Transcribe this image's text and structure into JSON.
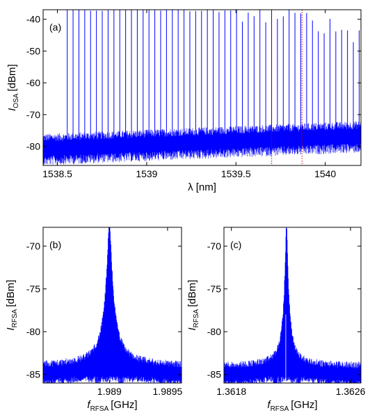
{
  "chart_data": [
    {
      "type": "line",
      "panel_label": "(a)",
      "xlabel": "λ [nm]",
      "ylabel_main": "I",
      "ylabel_sub": "OSA",
      "ylabel_unit": "[dBm]",
      "xlim": [
        1538.42,
        1540.2
      ],
      "ylim": [
        -86,
        -37
      ],
      "xticks": [
        1538.5,
        1539,
        1539.5,
        1540
      ],
      "xtick_labels": [
        "1538.5",
        "1539",
        "1539.5",
        "1540"
      ],
      "yticks": [
        -80,
        -70,
        -60,
        -50,
        -40
      ],
      "ytick_labels": [
        "-80",
        "-70",
        "-60",
        "-50",
        "-40"
      ],
      "noise_floor_dbm": -81,
      "line_spacing_nm": 0.0327,
      "first_line_nm": 1538.555,
      "peak_envelope": [
        {
          "x": 1538.555,
          "y": -36
        },
        {
          "x": 1538.65,
          "y": -37
        },
        {
          "x": 1538.85,
          "y": -37
        },
        {
          "x": 1539.2,
          "y": -37
        },
        {
          "x": 1539.6,
          "y": -38
        },
        {
          "x": 1539.9,
          "y": -40
        },
        {
          "x": 1540.2,
          "y": -45
        }
      ],
      "vlines": [
        1539.7,
        1539.87
      ],
      "series_color": "#0000ff"
    },
    {
      "type": "line",
      "panel_label": "(b)",
      "xlabel_main": "f",
      "xlabel_sub": "RFSA",
      "xlabel_unit": "[GHz]",
      "ylabel_main": "I",
      "ylabel_sub": "RFSA",
      "ylabel_unit": "[dBm]",
      "xlim": [
        1.98843,
        1.98962
      ],
      "ylim": [
        -86,
        -67.8
      ],
      "xticks": [
        1.989,
        1.9895
      ],
      "xtick_labels": [
        "1.989",
        "1.9895"
      ],
      "yticks": [
        -85,
        -80,
        -75,
        -70
      ],
      "ytick_labels": [
        "-85",
        "-80",
        "-75",
        "-70"
      ],
      "peak_center": 1.989,
      "peak_level_dbm": -68,
      "floor_dbm": -85,
      "series_color": "#0000ff"
    },
    {
      "type": "line",
      "panel_label": "(c)",
      "xlabel_main": "f",
      "xlabel_sub": "RFSA",
      "xlabel_unit": "[GHz]",
      "ylabel_main": "I",
      "ylabel_sub": "RFSA",
      "ylabel_unit": "[dBm]",
      "xlim": [
        1.36175,
        1.36267
      ],
      "ylim": [
        -86,
        -67.8
      ],
      "xticks": [
        1.3618,
        1.3626
      ],
      "xtick_labels": [
        "1.3618",
        "1.3626"
      ],
      "yticks": [
        -85,
        -80,
        -75,
        -70
      ],
      "ytick_labels": [
        "-85",
        "-80",
        "-75",
        "-70"
      ],
      "peak_center": 1.36217,
      "peak_level_dbm": -68,
      "floor_dbm": -85,
      "series_color": "#0000ff"
    }
  ]
}
